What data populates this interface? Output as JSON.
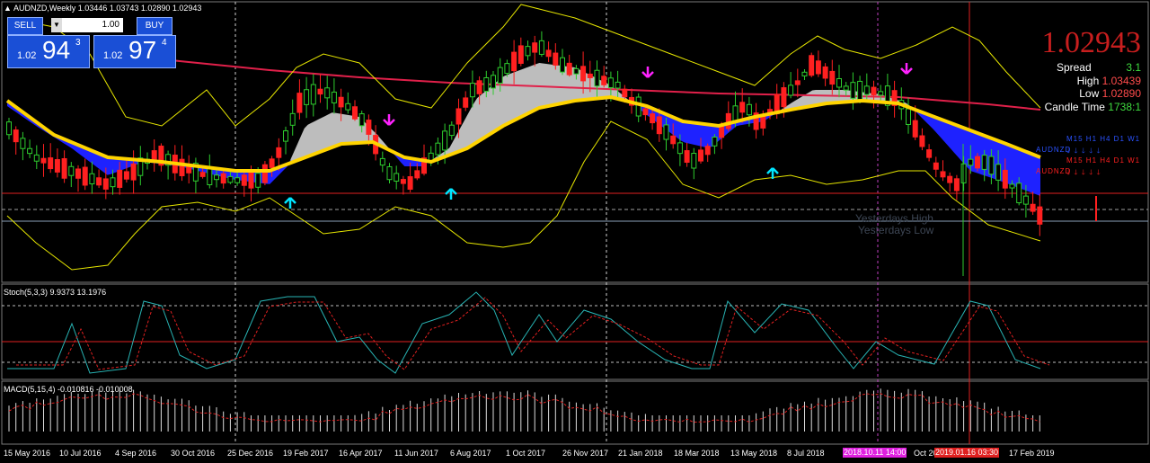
{
  "main": {
    "header": "AUDNZD,Weekly  1.03446 1.03743 1.02890 1.02943"
  },
  "trade_panel": {
    "sell_label": "SELL",
    "buy_label": "BUY",
    "lot_value": "1.00",
    "sell_prefix": "1.02",
    "sell_big": "94",
    "sell_sup": "3",
    "buy_prefix": "1.02",
    "buy_big": "97",
    "buy_sup": "4"
  },
  "info": {
    "price": "1.02943",
    "spread_label": "Spread",
    "spread_value": "3.1",
    "high_label": "High",
    "high_value": "1.03439",
    "low_label": "Low",
    "low_value": "1.02890",
    "candle_label": "Candle Time",
    "candle_value": "1738:1"
  },
  "mtf": {
    "row1_tfs": "M15  H1  H4  D1  W1",
    "row1_symbol": "AUDNZD",
    "row2_tfs": "M15  H1  H4  D1  W1",
    "row2_symbol": "AUDNZD"
  },
  "levels": {
    "yesterday_high": "Yesterdays High",
    "yesterday_low": "Yesterdays Low"
  },
  "stoch": {
    "header": "Stoch(5,3,3) 9.9373 13.1976"
  },
  "macd": {
    "header": "MACD(5,15,4) -0.010816 -0.010008"
  },
  "x_axis": {
    "labels": [
      "15 May 2016",
      "10 Jul 2016",
      "4 Sep 2016",
      "30 Oct 2016",
      "25 Dec 2016",
      "19 Feb 2017",
      "16 Apr 2017",
      "11 Jun 2017",
      "6 Aug 2017",
      "1 Oct 2017",
      "26 Nov 2017",
      "21 Jan 2018",
      "18 Mar 2018",
      "13 May 2018",
      "8 Jul 2018",
      "Oct 20",
      "17 Feb 2019"
    ],
    "tag_pink": "2018.10.11 14:00",
    "tag_red": "2019.01.16 03:30"
  },
  "colors": {
    "background": "#000000",
    "bull_candle": "#2ecc2e",
    "bear_candle": "#ff2020",
    "bollinger": "#e6e600",
    "ma_long": "#e0204a",
    "fill_blue": "#1e22ff",
    "fill_gray": "#bdbdbd",
    "ma_yellow": "#ffd400",
    "up_arrow": "#00e5ff",
    "down_arrow": "#ff22ff"
  }
}
